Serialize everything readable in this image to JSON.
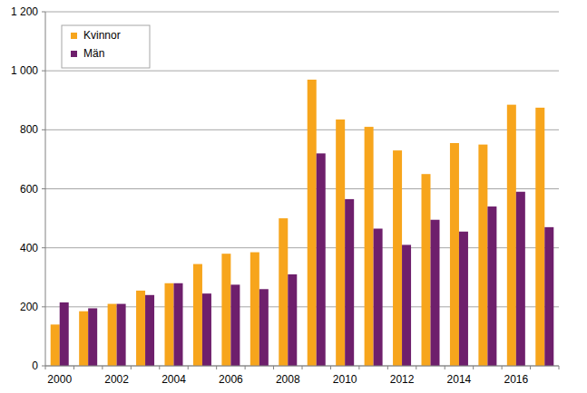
{
  "chart_data": {
    "type": "bar",
    "categories": [
      "2000",
      null,
      "2002",
      null,
      "2004",
      null,
      "2006",
      null,
      "2008",
      null,
      "2010",
      null,
      "2012",
      null,
      "2014",
      null,
      "2016",
      null
    ],
    "series": [
      {
        "name": "Kvinnor",
        "color": "#f7a51c",
        "values": [
          140,
          185,
          210,
          255,
          280,
          345,
          380,
          385,
          500,
          970,
          835,
          810,
          730,
          650,
          755,
          750,
          885,
          875
        ]
      },
      {
        "name": "Män",
        "color": "#6e1f6c",
        "values": [
          215,
          195,
          210,
          240,
          280,
          245,
          275,
          260,
          310,
          720,
          565,
          465,
          410,
          495,
          455,
          540,
          590,
          470
        ]
      }
    ],
    "ylim": [
      0,
      1200
    ],
    "yticks": [
      0,
      200,
      400,
      600,
      800,
      {
        "value": 1000,
        "label": "1 000"
      },
      {
        "value": 1200,
        "label": "1 200"
      }
    ],
    "grid": true,
    "legend": "upper left"
  }
}
